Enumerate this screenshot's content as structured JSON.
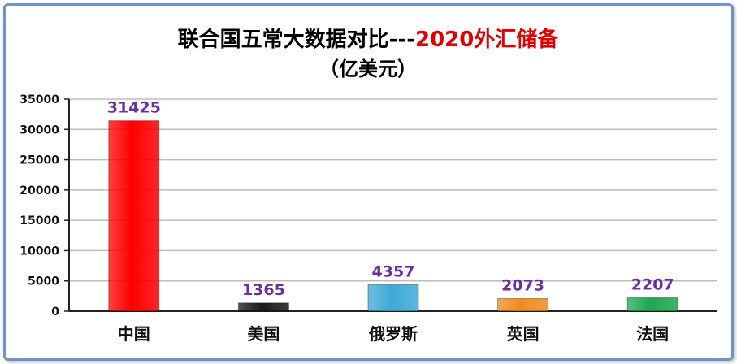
{
  "chart_data": {
    "type": "bar",
    "title": "联合国五常大数据对比---",
    "title_highlight": "2020外汇储备",
    "subtitle": "（亿美元）",
    "categories": [
      "中国",
      "美国",
      "俄罗斯",
      "英国",
      "法国"
    ],
    "values": [
      31425,
      1365,
      4357,
      2073,
      2207
    ],
    "ylim": [
      0,
      35000
    ],
    "yticks": [
      0,
      5000,
      10000,
      15000,
      20000,
      25000,
      30000,
      35000
    ],
    "grid": true,
    "legend": "none",
    "colors": {
      "bars": [
        "#ff0000",
        "#1a1a1a",
        "#3fa9d6",
        "#ef8b1e",
        "#1fa84f"
      ],
      "data_label": "#6b2fa0",
      "title_highlight": "#e00000",
      "grid": "#bdbdbd"
    }
  }
}
